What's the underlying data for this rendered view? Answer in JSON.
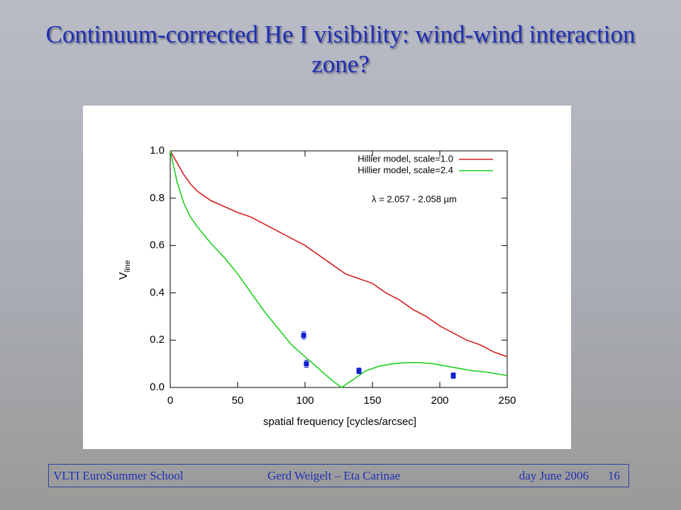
{
  "slide_title": "Continuum-corrected He I visibility: wind-wind interaction zone?",
  "footer": {
    "left": "VLTI EuroSummer School",
    "center": "Gerd Weigelt – Eta Carinae",
    "right": "day June 2006",
    "page": "16"
  },
  "chart_data": {
    "type": "line",
    "x_label": "spatial frequency [cycles/arcsec]",
    "y_label": "V",
    "y_label_sub": "line",
    "annotation": "λ = 2.057 - 2.058 µm",
    "xlim": [
      0,
      250
    ],
    "xticks": [
      0,
      50,
      100,
      150,
      200,
      250
    ],
    "ylim": [
      0,
      1
    ],
    "yticks": [
      {
        "value": 0,
        "label": "0.0"
      },
      0.2,
      0.4,
      0.6,
      0.8,
      {
        "value": 1,
        "label": "1.0"
      }
    ],
    "legend": "upper right",
    "series": [
      {
        "name": "Hillier model, scale=1.0",
        "color": "#d42020",
        "x": [
          0,
          5,
          10,
          15,
          20,
          25,
          30,
          40,
          50,
          60,
          70,
          80,
          90,
          100,
          110,
          120,
          130,
          140,
          150,
          160,
          170,
          180,
          190,
          200,
          210,
          220,
          230,
          240,
          250
        ],
        "values": [
          1.0,
          0.95,
          0.9,
          0.86,
          0.83,
          0.81,
          0.79,
          0.765,
          0.74,
          0.72,
          0.69,
          0.66,
          0.63,
          0.6,
          0.56,
          0.52,
          0.48,
          0.46,
          0.44,
          0.4,
          0.37,
          0.33,
          0.3,
          0.26,
          0.23,
          0.2,
          0.18,
          0.15,
          0.13
        ]
      },
      {
        "name": "Hillier model, scale=2.4",
        "color": "#20d020",
        "x": [
          0,
          5,
          10,
          15,
          20,
          30,
          40,
          50,
          60,
          70,
          80,
          90,
          100,
          110,
          120,
          127,
          135,
          145,
          155,
          165,
          175,
          185,
          195,
          205,
          215,
          225,
          235,
          245,
          250
        ],
        "values": [
          1.0,
          0.87,
          0.78,
          0.72,
          0.68,
          0.61,
          0.55,
          0.48,
          0.4,
          0.32,
          0.25,
          0.18,
          0.13,
          0.08,
          0.03,
          0.0,
          0.03,
          0.07,
          0.09,
          0.1,
          0.105,
          0.105,
          0.1,
          0.09,
          0.08,
          0.07,
          0.065,
          0.055,
          0.05
        ]
      }
    ],
    "points": {
      "color": "#1020d0",
      "x": [
        99,
        101,
        140,
        210
      ],
      "values": [
        0.22,
        0.1,
        0.07,
        0.05
      ],
      "errors": [
        0.015,
        0.015,
        0.012,
        0.012
      ]
    }
  }
}
